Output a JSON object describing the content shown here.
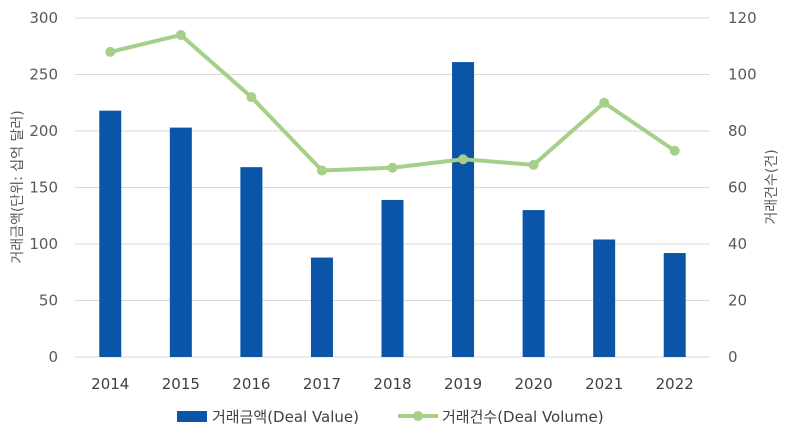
{
  "chart_data": {
    "type": "bar",
    "categories": [
      "2014",
      "2015",
      "2016",
      "2017",
      "2018",
      "2019",
      "2020",
      "2021",
      "2022"
    ],
    "series": [
      {
        "name": "거래금액(Deal Value)",
        "type": "bar",
        "axis": "left",
        "values": [
          218,
          203,
          168,
          88,
          139,
          261,
          130,
          104,
          92
        ]
      },
      {
        "name": "거래건수(Deal Volume)",
        "type": "line",
        "axis": "right",
        "values": [
          108,
          114,
          92,
          66,
          67,
          70,
          68,
          90,
          73
        ]
      }
    ],
    "ylabel": "거래금액(단위: 십억 달러)",
    "ylabel_right": "거래건수(건)",
    "ylim": [
      0,
      300
    ],
    "ylim_right": [
      0,
      120
    ],
    "yticks": [
      "0",
      "50",
      "100",
      "150",
      "200",
      "250",
      "300"
    ],
    "yticks_right": [
      "0",
      "20",
      "40",
      "60",
      "80",
      "100",
      "120"
    ],
    "grid": true,
    "legend": "bottom",
    "colors": {
      "bar": "#0B55A8",
      "line": "#A6CF8A",
      "grid": "#D9D9D9"
    }
  }
}
